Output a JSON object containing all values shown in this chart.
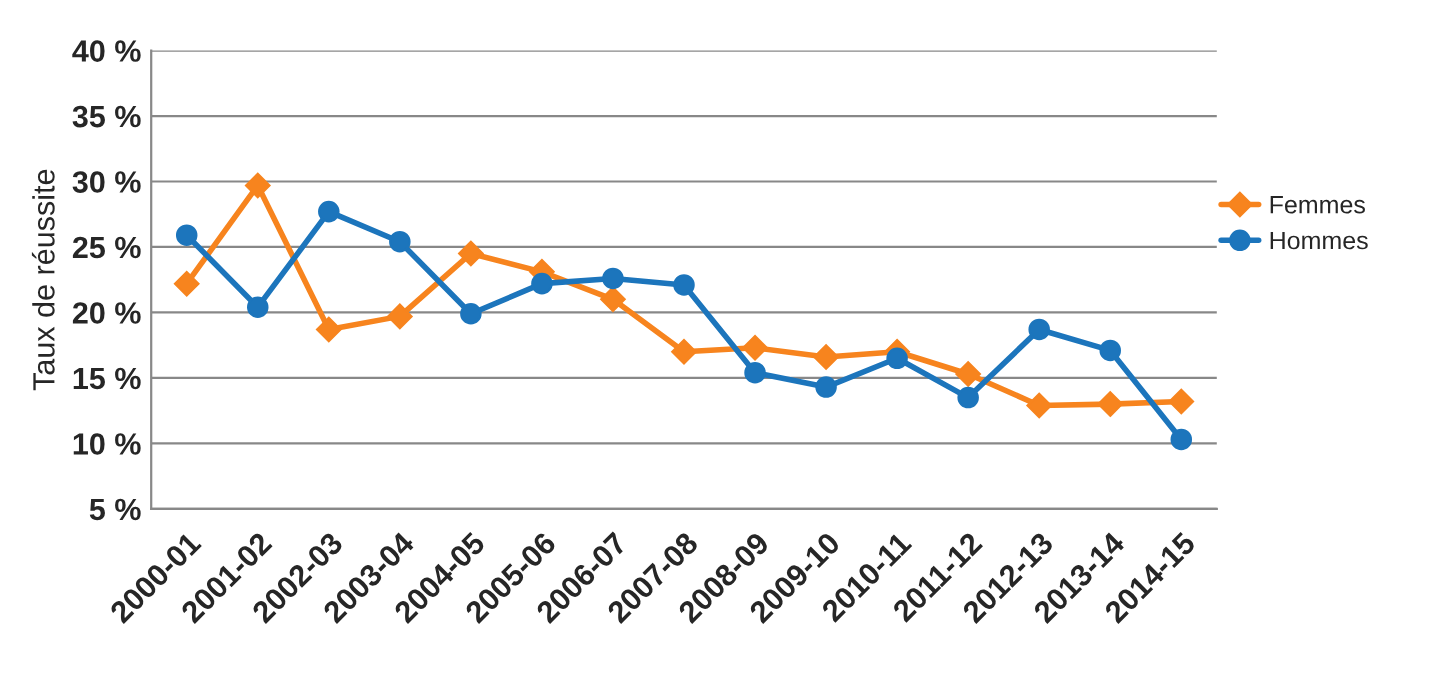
{
  "chart_data": {
    "type": "line",
    "ylabel": "Taux de réussite",
    "categories": [
      "2000-01",
      "2001-02",
      "2002-03",
      "2003-04",
      "2004-05",
      "2005-06",
      "2006-07",
      "2007-08",
      "2008-09",
      "2009-10",
      "2010-11",
      "2011-12",
      "2012-13",
      "2013-14",
      "2014-15"
    ],
    "series": [
      {
        "name": "Femmes",
        "color": "#f7841e",
        "marker": "diamond",
        "values": [
          22.2,
          29.7,
          18.7,
          19.7,
          24.5,
          23.1,
          21.0,
          17.0,
          17.3,
          16.6,
          17.0,
          15.3,
          12.9,
          13.0,
          13.2
        ]
      },
      {
        "name": "Hommes",
        "color": "#1c75bc",
        "marker": "circle",
        "values": [
          25.9,
          20.4,
          27.7,
          25.4,
          19.9,
          22.2,
          22.6,
          22.1,
          15.4,
          14.3,
          16.5,
          13.5,
          18.7,
          17.1,
          10.3
        ]
      }
    ],
    "ylim": [
      5,
      40
    ],
    "yticks": [
      {
        "value": 5,
        "label": "5 %"
      },
      {
        "value": 10,
        "label": "10 %"
      },
      {
        "value": 15,
        "label": "15 %"
      },
      {
        "value": 20,
        "label": "20 %"
      },
      {
        "value": 25,
        "label": "25 %"
      },
      {
        "value": 30,
        "label": "30 %"
      },
      {
        "value": 35,
        "label": "35 %"
      },
      {
        "value": 40,
        "label": "40 %"
      }
    ],
    "grid": "y",
    "legend": "right",
    "line_style": "solid"
  }
}
